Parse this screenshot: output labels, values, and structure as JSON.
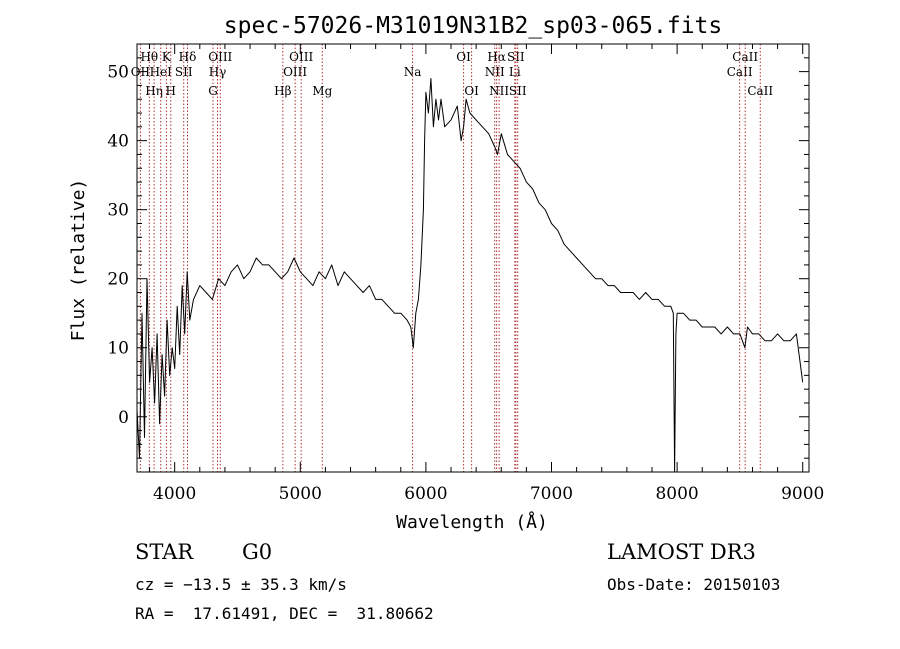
{
  "chart_data": {
    "type": "line",
    "title": "spec-57026-M31019N31B2_sp03-065.fits",
    "xlabel": "Wavelength (Å)",
    "ylabel": "Flux (relative)",
    "xlim": [
      3700,
      9050
    ],
    "ylim": [
      -8,
      54
    ],
    "x_ticks": [
      4000,
      5000,
      6000,
      7000,
      8000,
      9000
    ],
    "y_ticks": [
      0,
      10,
      20,
      30,
      40,
      50
    ],
    "grid": false,
    "series": [
      {
        "name": "flux",
        "x": [
          3700,
          3720,
          3740,
          3760,
          3780,
          3800,
          3820,
          3840,
          3860,
          3880,
          3900,
          3920,
          3940,
          3960,
          3980,
          4000,
          4020,
          4040,
          4060,
          4080,
          4100,
          4120,
          4150,
          4200,
          4250,
          4300,
          4350,
          4400,
          4450,
          4500,
          4550,
          4600,
          4650,
          4700,
          4750,
          4800,
          4850,
          4900,
          4950,
          5000,
          5050,
          5100,
          5150,
          5200,
          5250,
          5300,
          5350,
          5400,
          5450,
          5500,
          5550,
          5600,
          5650,
          5700,
          5750,
          5800,
          5850,
          5880,
          5900,
          5920,
          5940,
          5960,
          5980,
          5990,
          6000,
          6020,
          6040,
          6060,
          6080,
          6100,
          6120,
          6150,
          6200,
          6250,
          6280,
          6300,
          6320,
          6350,
          6400,
          6450,
          6500,
          6550,
          6570,
          6600,
          6650,
          6700,
          6750,
          6800,
          6850,
          6900,
          6950,
          7000,
          7050,
          7100,
          7150,
          7200,
          7250,
          7300,
          7350,
          7400,
          7450,
          7500,
          7550,
          7600,
          7650,
          7700,
          7750,
          7800,
          7850,
          7900,
          7950,
          7970,
          7980,
          7990,
          8000,
          8020,
          8050,
          8100,
          8150,
          8200,
          8250,
          8300,
          8350,
          8400,
          8450,
          8500,
          8540,
          8560,
          8600,
          8650,
          8700,
          8750,
          8800,
          8850,
          8900,
          8950,
          9000
        ],
        "values": [
          1,
          -6,
          15,
          -3,
          20,
          5,
          10,
          2,
          12,
          -1,
          9,
          3,
          14,
          6,
          10,
          7,
          16,
          9,
          19,
          12,
          21,
          14,
          17,
          19,
          18,
          17,
          20,
          19,
          21,
          22,
          20,
          21,
          23,
          22,
          22,
          21,
          20,
          21,
          23,
          21,
          20,
          19,
          21,
          20,
          22,
          19,
          21,
          20,
          19,
          18,
          19,
          17,
          17,
          16,
          15,
          15,
          14,
          13,
          10,
          15,
          17,
          22,
          30,
          40,
          47,
          44,
          49,
          42,
          46,
          43,
          46,
          42,
          43,
          45,
          40,
          42,
          46,
          44,
          43,
          42,
          41,
          39,
          38,
          41,
          38,
          37,
          36,
          34,
          33,
          31,
          30,
          28,
          27,
          25,
          24,
          23,
          22,
          21,
          20,
          20,
          19,
          19,
          18,
          18,
          18,
          17,
          18,
          17,
          17,
          16,
          16,
          15,
          -8,
          12,
          15,
          15,
          15,
          14,
          14,
          13,
          13,
          13,
          12,
          13,
          12,
          12,
          10,
          13,
          12,
          12,
          11,
          11,
          12,
          11,
          11,
          12,
          5
        ]
      }
    ],
    "line_markers": [
      {
        "label": "Hθ",
        "x": 3798,
        "row": 1
      },
      {
        "label": "OII",
        "x": 3727,
        "row": 2
      },
      {
        "label": "Hη",
        "x": 3836,
        "row": 3
      },
      {
        "label": "HeI",
        "x": 3889,
        "row": 2
      },
      {
        "label": "K",
        "x": 3934,
        "row": 1
      },
      {
        "label": "H",
        "x": 3969,
        "row": 3
      },
      {
        "label": "SII",
        "x": 4072,
        "row": 2
      },
      {
        "label": "Hδ",
        "x": 4102,
        "row": 1
      },
      {
        "label": "G",
        "x": 4305,
        "row": 3
      },
      {
        "label": "Hγ",
        "x": 4341,
        "row": 2
      },
      {
        "label": "OIII",
        "x": 4363,
        "row": 1
      },
      {
        "label": "Hβ",
        "x": 4861,
        "row": 3
      },
      {
        "label": "OIII",
        "x": 4959,
        "row": 2
      },
      {
        "label": "OIII",
        "x": 5007,
        "row": 1
      },
      {
        "label": "Mg",
        "x": 5175,
        "row": 3
      },
      {
        "label": "Na",
        "x": 5894,
        "row": 2
      },
      {
        "label": "OI",
        "x": 6300,
        "row": 1
      },
      {
        "label": "OI",
        "x": 6364,
        "row": 3
      },
      {
        "label": "NII",
        "x": 6548,
        "row": 2
      },
      {
        "label": "Hα",
        "x": 6563,
        "row": 1
      },
      {
        "label": "NII",
        "x": 6583,
        "row": 3
      },
      {
        "label": "Li",
        "x": 6708,
        "row": 2
      },
      {
        "label": "SII",
        "x": 6716,
        "row": 1
      },
      {
        "label": "SII",
        "x": 6731,
        "row": 3
      },
      {
        "label": "CaII",
        "x": 8498,
        "row": 2
      },
      {
        "label": "CaII",
        "x": 8542,
        "row": 1
      },
      {
        "label": "CaII",
        "x": 8662,
        "row": 3
      }
    ],
    "colors": {
      "spectrum": "#000000",
      "markers": "#b03030"
    }
  },
  "info": {
    "class": "STAR",
    "subclass": "G0",
    "survey": "LAMOST DR3",
    "cz": "cz = −13.5 ± 35.3 km/s",
    "obs_date": "Obs-Date: 20150103",
    "coords": "RA =  17.61491, DEC =  31.80662"
  }
}
